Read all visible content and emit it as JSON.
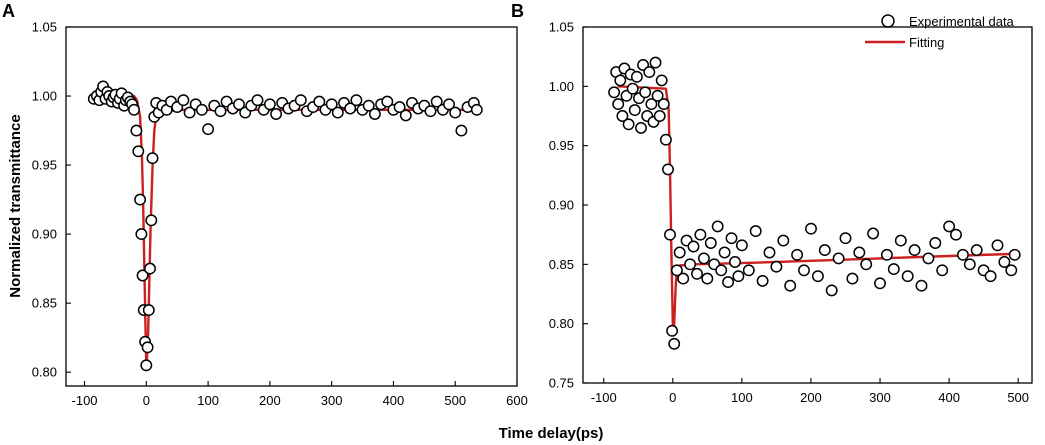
{
  "figure": {
    "xlabel": "Time delay(ps)",
    "ylabel": "Normalized transmittance",
    "legend": {
      "scatter_label": "Experimental data",
      "line_label": "Fitting",
      "placement": "top-right of panel B"
    },
    "colors": {
      "fit": "#cc1f1f",
      "marker_edge": "#000000",
      "marker_face": "#ffffff"
    }
  },
  "chart_data": [
    {
      "panel": "A",
      "type": "scatter",
      "xlim": [
        -130,
        600
      ],
      "ylim": [
        0.79,
        1.05
      ],
      "xticks": [
        -100,
        0,
        100,
        200,
        300,
        400,
        500,
        600
      ],
      "xtick_labels": [
        "-100",
        "0",
        "100",
        "200",
        "300",
        "400",
        "500",
        "600"
      ],
      "yticks": [
        0.8,
        0.85,
        0.9,
        0.95,
        1.0,
        1.05
      ],
      "ytick_labels": [
        "0.80",
        "0.85",
        "0.90",
        "0.95",
        "1.00",
        "1.05"
      ],
      "series": [
        {
          "name": "Experimental data",
          "kind": "scatter",
          "x": [
            -85,
            -80,
            -76,
            -73,
            -70,
            -66,
            -63,
            -60,
            -56,
            -53,
            -50,
            -46,
            -43,
            -40,
            -36,
            -33,
            -30,
            -26,
            -23,
            -20,
            -16,
            -13,
            -10,
            -8,
            -6,
            -4,
            -2,
            0,
            2,
            4,
            6,
            8,
            10,
            13,
            16,
            20,
            26,
            33,
            40,
            50,
            60,
            70,
            80,
            90,
            100,
            110,
            120,
            130,
            140,
            150,
            160,
            170,
            180,
            190,
            200,
            210,
            220,
            230,
            240,
            250,
            260,
            270,
            280,
            290,
            300,
            310,
            320,
            330,
            340,
            350,
            360,
            370,
            380,
            390,
            400,
            410,
            420,
            430,
            440,
            450,
            460,
            470,
            480,
            490,
            500,
            510,
            520,
            530,
            535
          ],
          "y": [
            0.998,
            1.0,
            0.997,
            1.003,
            1.007,
            0.998,
            1.003,
            1.0,
            0.996,
            0.999,
            1.001,
            0.995,
            0.998,
            1.002,
            0.993,
            0.997,
            0.999,
            0.996,
            0.994,
            0.99,
            0.975,
            0.96,
            0.925,
            0.9,
            0.87,
            0.845,
            0.822,
            0.805,
            0.818,
            0.845,
            0.875,
            0.91,
            0.955,
            0.985,
            0.995,
            0.988,
            0.993,
            0.99,
            0.996,
            0.992,
            0.997,
            0.988,
            0.994,
            0.99,
            0.976,
            0.993,
            0.989,
            0.996,
            0.991,
            0.994,
            0.988,
            0.993,
            0.997,
            0.99,
            0.994,
            0.987,
            0.995,
            0.991,
            0.993,
            0.997,
            0.989,
            0.992,
            0.996,
            0.99,
            0.994,
            0.988,
            0.995,
            0.991,
            0.997,
            0.99,
            0.993,
            0.987,
            0.994,
            0.996,
            0.99,
            0.992,
            0.986,
            0.995,
            0.991,
            0.993,
            0.989,
            0.996,
            0.99,
            0.994,
            0.988,
            0.975,
            0.992,
            0.995,
            0.99
          ]
        },
        {
          "name": "Fitting",
          "kind": "line",
          "x": [
            -80,
            -20,
            -15,
            -10,
            -7,
            -5,
            -3,
            -1,
            0,
            1,
            3,
            5,
            7,
            10,
            13,
            16,
            20,
            30,
            60,
            100,
            200,
            300,
            400,
            500,
            535
          ],
          "y": [
            1.0,
            1.0,
            0.997,
            0.985,
            0.955,
            0.92,
            0.87,
            0.825,
            0.805,
            0.808,
            0.83,
            0.868,
            0.905,
            0.948,
            0.975,
            0.986,
            0.989,
            0.989,
            0.99,
            0.99,
            0.99,
            0.99,
            0.99,
            0.99,
            0.99
          ]
        }
      ]
    },
    {
      "panel": "B",
      "type": "scatter",
      "xlim": [
        -130,
        520
      ],
      "ylim": [
        0.75,
        1.05
      ],
      "xticks": [
        -100,
        0,
        100,
        200,
        300,
        400,
        500
      ],
      "xtick_labels": [
        "-100",
        "0",
        "100",
        "200",
        "300",
        "400",
        "500"
      ],
      "yticks": [
        0.75,
        0.8,
        0.85,
        0.9,
        0.95,
        1.0,
        1.05
      ],
      "ytick_labels": [
        "0.75",
        "0.80",
        "0.85",
        "0.90",
        "0.95",
        "1.00",
        "1.05"
      ],
      "series": [
        {
          "name": "Experimental data",
          "kind": "scatter",
          "x": [
            -85,
            -82,
            -79,
            -76,
            -73,
            -70,
            -67,
            -64,
            -61,
            -58,
            -55,
            -52,
            -49,
            -46,
            -43,
            -40,
            -37,
            -34,
            -31,
            -28,
            -25,
            -22,
            -19,
            -16,
            -13,
            -10,
            -7,
            -4,
            -1,
            2,
            6,
            10,
            15,
            20,
            25,
            30,
            35,
            40,
            45,
            50,
            55,
            60,
            65,
            70,
            75,
            80,
            85,
            90,
            95,
            100,
            110,
            120,
            130,
            140,
            150,
            160,
            170,
            180,
            190,
            200,
            210,
            220,
            230,
            240,
            250,
            260,
            270,
            280,
            290,
            300,
            310,
            320,
            330,
            340,
            350,
            360,
            370,
            380,
            390,
            400,
            410,
            420,
            430,
            440,
            450,
            460,
            470,
            480,
            490,
            495
          ],
          "y": [
            0.995,
            1.012,
            0.985,
            1.005,
            0.975,
            1.015,
            0.992,
            0.968,
            1.01,
            0.998,
            0.98,
            1.008,
            0.99,
            0.965,
            1.018,
            0.995,
            0.975,
            1.012,
            0.985,
            0.97,
            1.02,
            0.992,
            0.975,
            1.005,
            0.985,
            0.955,
            0.93,
            0.875,
            0.794,
            0.783,
            0.845,
            0.86,
            0.838,
            0.87,
            0.85,
            0.865,
            0.842,
            0.875,
            0.855,
            0.838,
            0.868,
            0.85,
            0.882,
            0.845,
            0.86,
            0.835,
            0.872,
            0.852,
            0.84,
            0.866,
            0.845,
            0.878,
            0.836,
            0.86,
            0.848,
            0.87,
            0.832,
            0.858,
            0.845,
            0.88,
            0.84,
            0.862,
            0.828,
            0.855,
            0.872,
            0.838,
            0.86,
            0.85,
            0.876,
            0.834,
            0.858,
            0.846,
            0.87,
            0.84,
            0.862,
            0.832,
            0.855,
            0.868,
            0.845,
            0.882,
            0.875,
            0.858,
            0.85,
            0.862,
            0.845,
            0.84,
            0.866,
            0.852,
            0.845,
            0.858
          ]
        },
        {
          "name": "Fitting",
          "kind": "line",
          "x": [
            -80,
            -10,
            -6,
            -4,
            -2,
            0,
            1,
            2,
            4,
            6,
            10,
            30,
            100,
            200,
            300,
            400,
            500
          ],
          "y": [
            1.0,
            0.998,
            0.98,
            0.93,
            0.86,
            0.8,
            0.79,
            0.8,
            0.83,
            0.846,
            0.849,
            0.85,
            0.851,
            0.853,
            0.855,
            0.857,
            0.859
          ]
        }
      ]
    }
  ]
}
